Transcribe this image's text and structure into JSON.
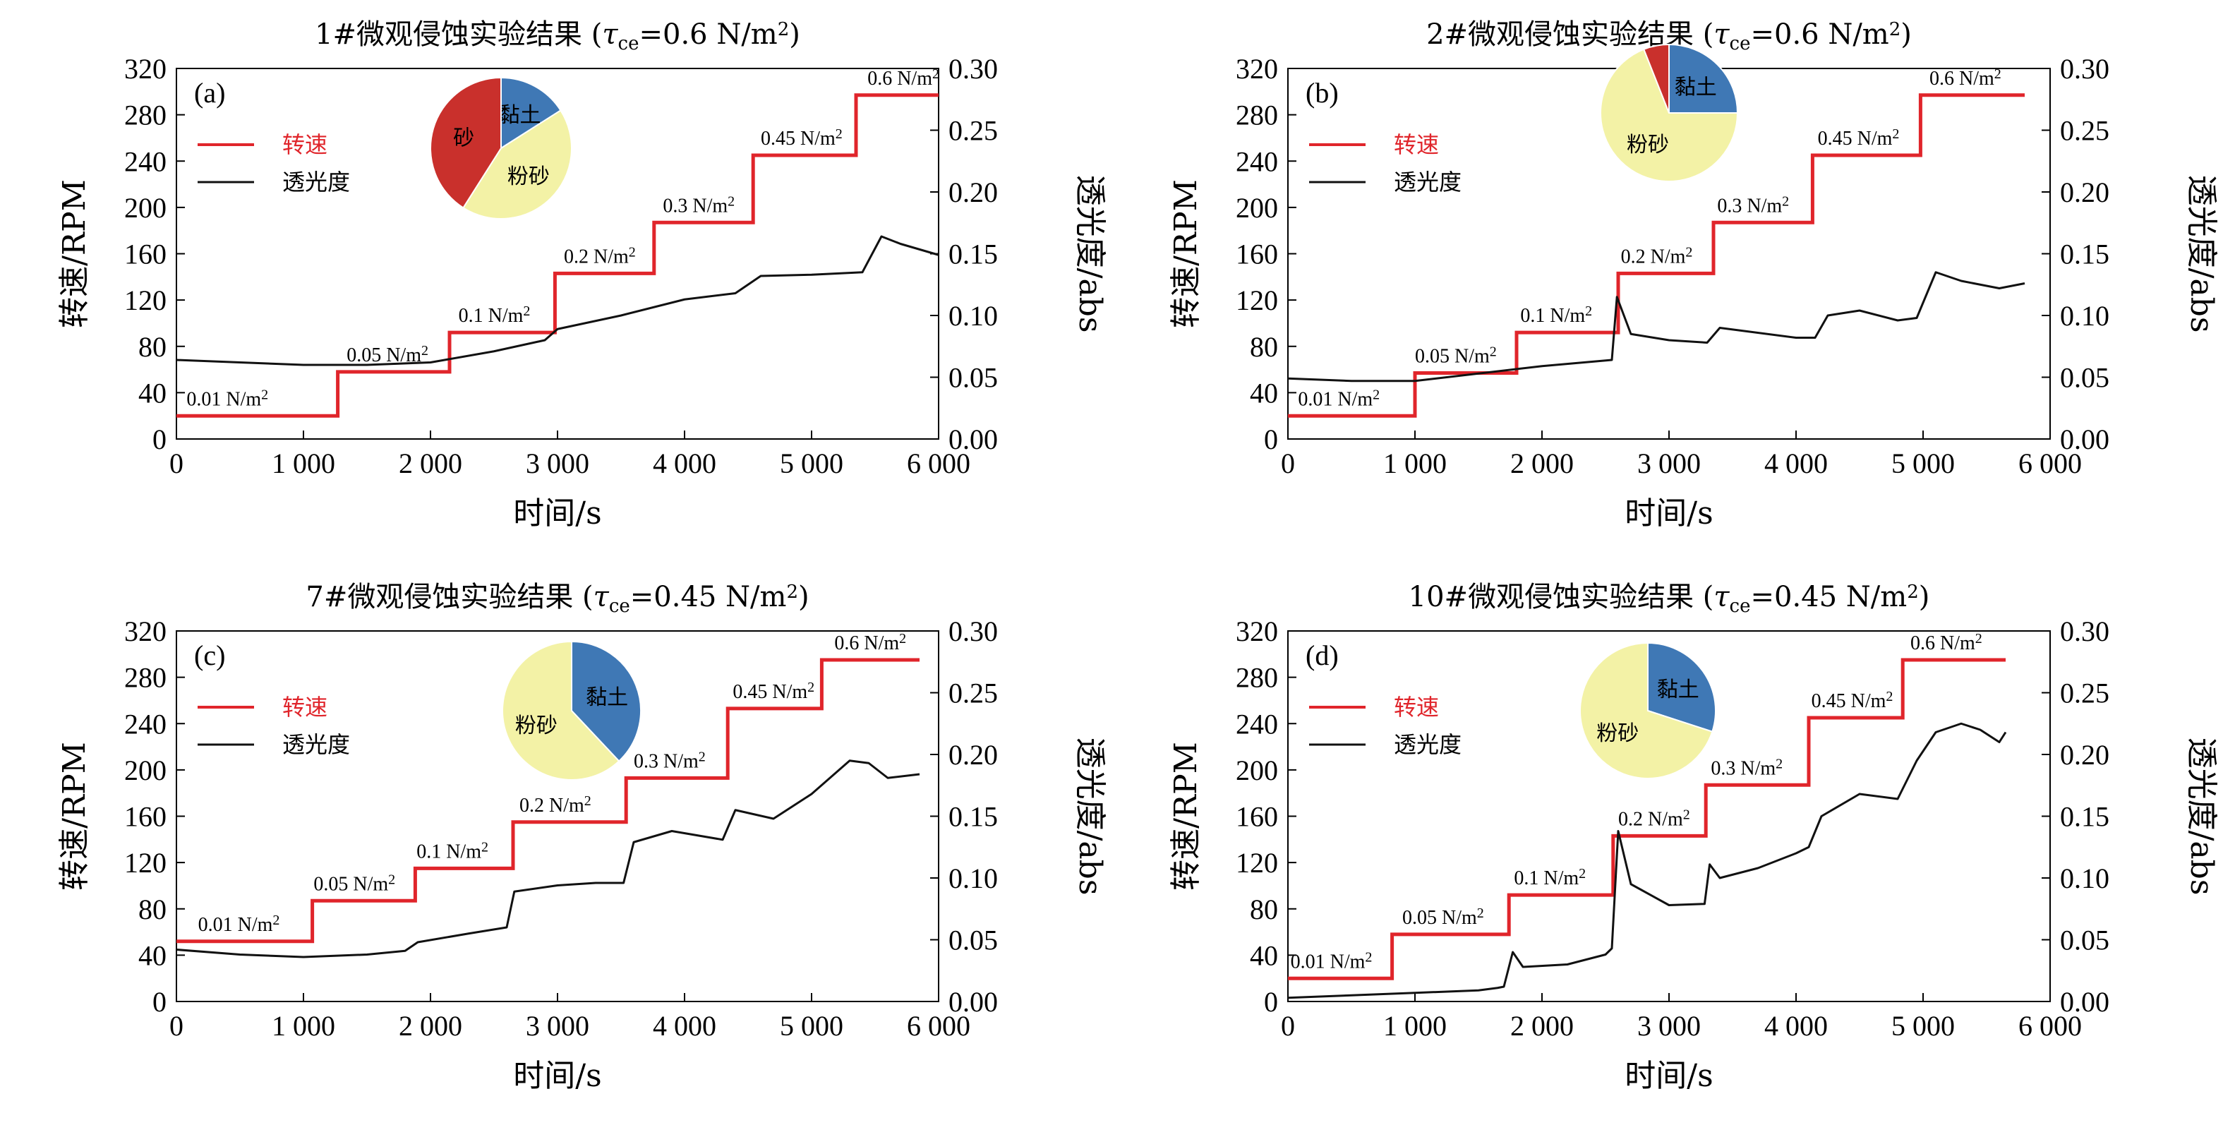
{
  "colors": {
    "rpm": "#e0252b",
    "trans": "#111111",
    "clay": "#3f78b5",
    "silt": "#f3f2a6",
    "sand": "#c9302c"
  },
  "chart_data": [
    {
      "type": "line",
      "panel_label": "(a)",
      "title_main": "1#微观侵蚀实验结果 (",
      "title_tau": "τ",
      "title_sub": "ce",
      "title_eq": "=0.6 N/m",
      "title_sup": "2",
      "title_end": ")",
      "xlabel": "时间/s",
      "ylabel": "转速/RPM",
      "y2label": "透光度/abs",
      "xlim": [
        0,
        6000
      ],
      "ylim": [
        0,
        320
      ],
      "y2lim": [
        0,
        0.3
      ],
      "xticks": [
        "0",
        "1 000",
        "2 000",
        "3 000",
        "4 000",
        "5 000",
        "6 000"
      ],
      "yticks": [
        "0",
        "40",
        "80",
        "120",
        "160",
        "200",
        "240",
        "280",
        "320"
      ],
      "y2ticks": [
        "0.00",
        "0.05",
        "0.10",
        "0.15",
        "0.20",
        "0.25",
        "0.30"
      ],
      "legend": [
        "转速",
        "透光度"
      ],
      "series": [
        {
          "name": "转速",
          "axis": "left",
          "steps": [
            [
              0,
              1270,
              20
            ],
            [
              1270,
              2150,
              58
            ],
            [
              2150,
              2980,
              92
            ],
            [
              2980,
              3760,
              143
            ],
            [
              3760,
              4540,
              187
            ],
            [
              4540,
              5350,
              245
            ],
            [
              5350,
              6000,
              297
            ]
          ]
        },
        {
          "name": "透光度",
          "axis": "right",
          "points": [
            [
              0,
              0.064
            ],
            [
              500,
              0.062
            ],
            [
              1000,
              0.06
            ],
            [
              1500,
              0.06
            ],
            [
              2000,
              0.062
            ],
            [
              2500,
              0.071
            ],
            [
              2900,
              0.08
            ],
            [
              3000,
              0.089
            ],
            [
              3500,
              0.1
            ],
            [
              4000,
              0.113
            ],
            [
              4400,
              0.118
            ],
            [
              4600,
              0.132
            ],
            [
              5000,
              0.133
            ],
            [
              5400,
              0.135
            ],
            [
              5550,
              0.164
            ],
            [
              5700,
              0.158
            ],
            [
              6000,
              0.149
            ]
          ]
        }
      ],
      "level_labels": [
        {
          "text": "0.01 N/m",
          "sup": "2",
          "x": 80,
          "y": 23
        },
        {
          "text": "0.05 N/m",
          "sup": "2",
          "x": 1340,
          "y": 61
        },
        {
          "text": "0.1 N/m",
          "sup": "2",
          "x": 2220,
          "y": 95
        },
        {
          "text": "0.2 N/m",
          "sup": "2",
          "x": 3050,
          "y": 146
        },
        {
          "text": "0.3 N/m",
          "sup": "2",
          "x": 3830,
          "y": 190
        },
        {
          "text": "0.45 N/m",
          "sup": "2",
          "x": 4600,
          "y": 248
        },
        {
          "text": "0.6 N/m",
          "sup": "2",
          "x": 5440,
          "y": 300
        }
      ],
      "pie": [
        {
          "label": "黏土",
          "value": 0.16
        },
        {
          "label": "粉砂",
          "value": 0.43
        },
        {
          "label": "砂",
          "value": 0.41
        }
      ]
    },
    {
      "type": "line",
      "panel_label": "(b)",
      "title_main": "2#微观侵蚀实验结果 (",
      "title_tau": "τ",
      "title_sub": "ce",
      "title_eq": "=0.6 N/m",
      "title_sup": "2",
      "title_end": ")",
      "xlabel": "时间/s",
      "ylabel": "转速/RPM",
      "y2label": "透光度/abs",
      "xlim": [
        0,
        6000
      ],
      "ylim": [
        0,
        320
      ],
      "y2lim": [
        0,
        0.3
      ],
      "xticks": [
        "0",
        "1 000",
        "2 000",
        "3 000",
        "4 000",
        "5 000",
        "6 000"
      ],
      "yticks": [
        "0",
        "40",
        "80",
        "120",
        "160",
        "200",
        "240",
        "280",
        "320"
      ],
      "y2ticks": [
        "0.00",
        "0.05",
        "0.10",
        "0.15",
        "0.20",
        "0.25",
        "0.30"
      ],
      "legend": [
        "转速",
        "透光度"
      ],
      "series": [
        {
          "name": "转速",
          "axis": "left",
          "steps": [
            [
              0,
              1000,
              20
            ],
            [
              1000,
              1800,
              57
            ],
            [
              1800,
              2600,
              92
            ],
            [
              2600,
              3350,
              143
            ],
            [
              3350,
              4130,
              187
            ],
            [
              4130,
              4980,
              245
            ],
            [
              4980,
              5800,
              297
            ]
          ]
        },
        {
          "name": "透光度",
          "axis": "right",
          "points": [
            [
              0,
              0.049
            ],
            [
              500,
              0.047
            ],
            [
              1000,
              0.047
            ],
            [
              1500,
              0.053
            ],
            [
              2000,
              0.059
            ],
            [
              2550,
              0.064
            ],
            [
              2590,
              0.115
            ],
            [
              2700,
              0.085
            ],
            [
              3000,
              0.08
            ],
            [
              3300,
              0.078
            ],
            [
              3400,
              0.09
            ],
            [
              4000,
              0.082
            ],
            [
              4150,
              0.082
            ],
            [
              4250,
              0.1
            ],
            [
              4500,
              0.104
            ],
            [
              4800,
              0.096
            ],
            [
              4950,
              0.098
            ],
            [
              5100,
              0.135
            ],
            [
              5300,
              0.128
            ],
            [
              5600,
              0.122
            ],
            [
              5800,
              0.126
            ]
          ]
        }
      ],
      "level_labels": [
        {
          "text": "0.01 N/m",
          "sup": "2",
          "x": 80,
          "y": 23
        },
        {
          "text": "0.05 N/m",
          "sup": "2",
          "x": 1000,
          "y": 60
        },
        {
          "text": "0.1 N/m",
          "sup": "2",
          "x": 1830,
          "y": 95
        },
        {
          "text": "0.2 N/m",
          "sup": "2",
          "x": 2620,
          "y": 146
        },
        {
          "text": "0.3 N/m",
          "sup": "2",
          "x": 3380,
          "y": 190
        },
        {
          "text": "0.45 N/m",
          "sup": "2",
          "x": 4170,
          "y": 248
        },
        {
          "text": "0.6 N/m",
          "sup": "2",
          "x": 5050,
          "y": 300
        }
      ],
      "pie": [
        {
          "label": "黏土",
          "value": 0.25
        },
        {
          "label": "粉砂",
          "value": 0.69
        },
        {
          "label": "",
          "value": 0.06
        }
      ]
    },
    {
      "type": "line",
      "panel_label": "(c)",
      "title_main": "7#微观侵蚀实验结果 (",
      "title_tau": "τ",
      "title_sub": "ce",
      "title_eq": "=0.45 N/m",
      "title_sup": "2",
      "title_end": ")",
      "xlabel": "时间/s",
      "ylabel": "转速/RPM",
      "y2label": "透光度/abs",
      "xlim": [
        0,
        6000
      ],
      "ylim": [
        0,
        320
      ],
      "y2lim": [
        0,
        0.3
      ],
      "xticks": [
        "0",
        "1 000",
        "2 000",
        "3 000",
        "4 000",
        "5 000",
        "6 000"
      ],
      "yticks": [
        "0",
        "40",
        "80",
        "120",
        "160",
        "200",
        "240",
        "280",
        "320"
      ],
      "y2ticks": [
        "0.00",
        "0.05",
        "0.10",
        "0.15",
        "0.20",
        "0.25",
        "0.30"
      ],
      "legend": [
        "转速",
        "透光度"
      ],
      "series": [
        {
          "name": "转速",
          "axis": "left",
          "steps": [
            [
              0,
              1070,
              52
            ],
            [
              1070,
              1880,
              87
            ],
            [
              1880,
              2650,
              115
            ],
            [
              2650,
              3540,
              155
            ],
            [
              3540,
              4340,
              193
            ],
            [
              4340,
              5080,
              253
            ],
            [
              5080,
              5850,
              295
            ]
          ]
        },
        {
          "name": "透光度",
          "axis": "right",
          "points": [
            [
              0,
              0.042
            ],
            [
              500,
              0.038
            ],
            [
              1000,
              0.036
            ],
            [
              1500,
              0.038
            ],
            [
              1800,
              0.041
            ],
            [
              1900,
              0.048
            ],
            [
              2300,
              0.055
            ],
            [
              2600,
              0.06
            ],
            [
              2660,
              0.089
            ],
            [
              3000,
              0.094
            ],
            [
              3300,
              0.096
            ],
            [
              3520,
              0.096
            ],
            [
              3600,
              0.129
            ],
            [
              3900,
              0.138
            ],
            [
              4300,
              0.131
            ],
            [
              4400,
              0.155
            ],
            [
              4700,
              0.148
            ],
            [
              5000,
              0.168
            ],
            [
              5300,
              0.195
            ],
            [
              5450,
              0.193
            ],
            [
              5600,
              0.181
            ],
            [
              5850,
              0.184
            ]
          ]
        }
      ],
      "level_labels": [
        {
          "text": "0.01 N/m",
          "sup": "2",
          "x": 170,
          "y": 55
        },
        {
          "text": "0.05 N/m",
          "sup": "2",
          "x": 1080,
          "y": 90
        },
        {
          "text": "0.1 N/m",
          "sup": "2",
          "x": 1890,
          "y": 118
        },
        {
          "text": "0.2 N/m",
          "sup": "2",
          "x": 2700,
          "y": 158
        },
        {
          "text": "0.3 N/m",
          "sup": "2",
          "x": 3600,
          "y": 196
        },
        {
          "text": "0.45 N/m",
          "sup": "2",
          "x": 4380,
          "y": 256
        },
        {
          "text": "0.6 N/m",
          "sup": "2",
          "x": 5180,
          "y": 298
        }
      ],
      "pie": [
        {
          "label": "黏土",
          "value": 0.38
        },
        {
          "label": "粉砂",
          "value": 0.62
        }
      ]
    },
    {
      "type": "line",
      "panel_label": "(d)",
      "title_main": "10#微观侵蚀实验结果 (",
      "title_tau": "τ",
      "title_sub": "ce",
      "title_eq": "=0.45 N/m",
      "title_sup": "2",
      "title_end": ")",
      "xlabel": "时间/s",
      "ylabel": "转速/RPM",
      "y2label": "透光度/abs",
      "xlim": [
        0,
        6000
      ],
      "ylim": [
        0,
        320
      ],
      "y2lim": [
        0,
        0.3
      ],
      "xticks": [
        "0",
        "1 000",
        "2 000",
        "3 000",
        "4 000",
        "5 000",
        "6 000"
      ],
      "yticks": [
        "0",
        "40",
        "80",
        "120",
        "160",
        "200",
        "240",
        "280",
        "320"
      ],
      "y2ticks": [
        "0.00",
        "0.05",
        "0.10",
        "0.15",
        "0.20",
        "0.25",
        "0.30"
      ],
      "legend": [
        "转速",
        "透光度"
      ],
      "series": [
        {
          "name": "转速",
          "axis": "left",
          "steps": [
            [
              0,
              820,
              20
            ],
            [
              820,
              1740,
              58
            ],
            [
              1740,
              2560,
              92
            ],
            [
              2560,
              3290,
              143
            ],
            [
              3290,
              4100,
              187
            ],
            [
              4100,
              4840,
              245
            ],
            [
              4840,
              5650,
              295
            ]
          ]
        },
        {
          "name": "透光度",
          "axis": "right",
          "points": [
            [
              0,
              0.003
            ],
            [
              500,
              0.005
            ],
            [
              1000,
              0.007
            ],
            [
              1500,
              0.009
            ],
            [
              1650,
              0.011
            ],
            [
              1700,
              0.012
            ],
            [
              1770,
              0.04
            ],
            [
              1850,
              0.028
            ],
            [
              2200,
              0.03
            ],
            [
              2500,
              0.038
            ],
            [
              2550,
              0.043
            ],
            [
              2600,
              0.138
            ],
            [
              2700,
              0.095
            ],
            [
              3000,
              0.078
            ],
            [
              3280,
              0.079
            ],
            [
              3320,
              0.111
            ],
            [
              3400,
              0.1
            ],
            [
              3700,
              0.108
            ],
            [
              4000,
              0.12
            ],
            [
              4100,
              0.125
            ],
            [
              4200,
              0.15
            ],
            [
              4500,
              0.168
            ],
            [
              4800,
              0.164
            ],
            [
              4950,
              0.195
            ],
            [
              5100,
              0.218
            ],
            [
              5300,
              0.225
            ],
            [
              5450,
              0.22
            ],
            [
              5600,
              0.21
            ],
            [
              5650,
              0.218
            ]
          ]
        }
      ],
      "level_labels": [
        {
          "text": "0.01 N/m",
          "sup": "2",
          "x": 20,
          "y": 23
        },
        {
          "text": "0.05 N/m",
          "sup": "2",
          "x": 900,
          "y": 61
        },
        {
          "text": "0.1 N/m",
          "sup": "2",
          "x": 1780,
          "y": 95
        },
        {
          "text": "0.2 N/m",
          "sup": "2",
          "x": 2600,
          "y": 146
        },
        {
          "text": "0.3 N/m",
          "sup": "2",
          "x": 3330,
          "y": 190
        },
        {
          "text": "0.45 N/m",
          "sup": "2",
          "x": 4120,
          "y": 248
        },
        {
          "text": "0.6 N/m",
          "sup": "2",
          "x": 4900,
          "y": 298
        }
      ],
      "pie": [
        {
          "label": "黏土",
          "value": 0.3
        },
        {
          "label": "粉砂",
          "value": 0.7
        }
      ]
    }
  ]
}
